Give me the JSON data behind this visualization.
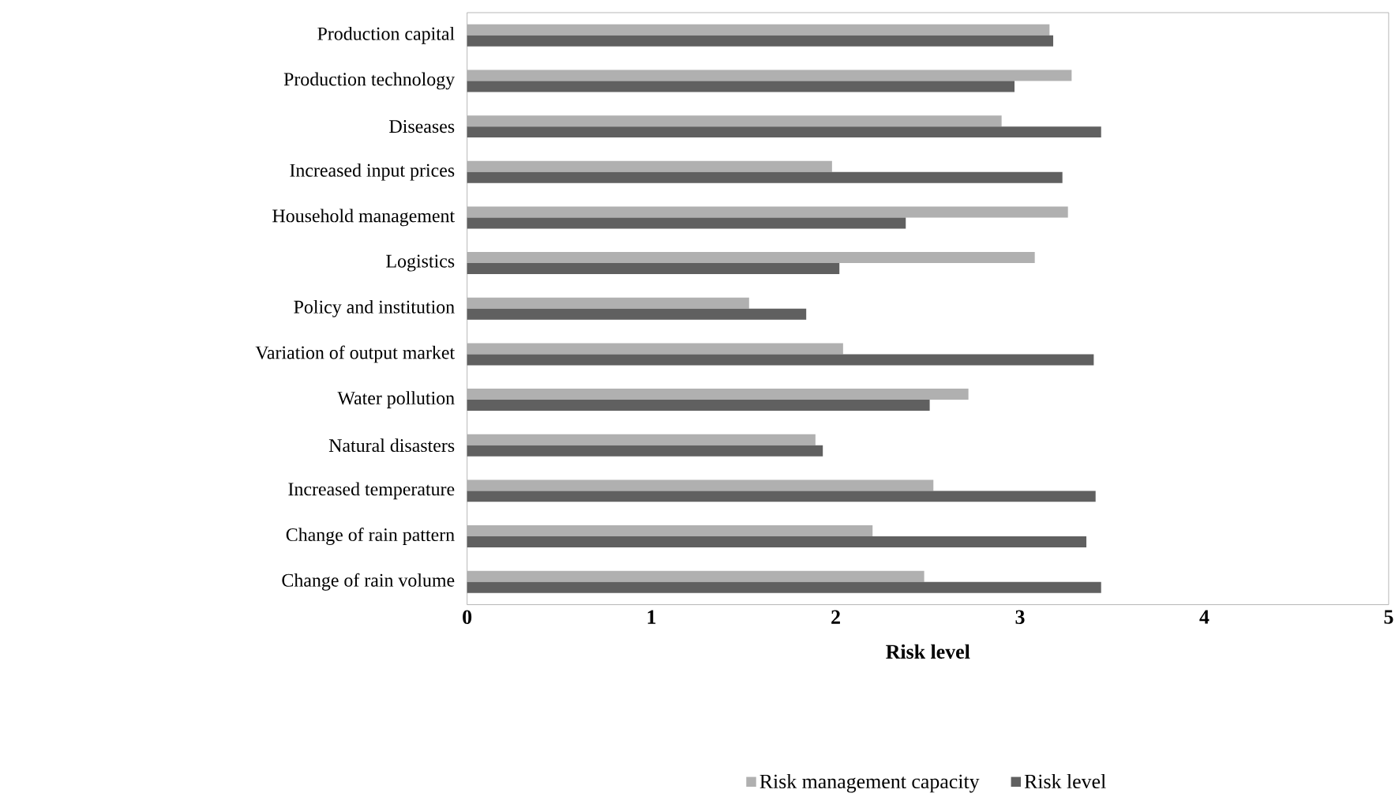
{
  "chart_data": {
    "type": "bar",
    "orientation": "horizontal",
    "xlabel": "Risk level",
    "categories": [
      "Production capital",
      "Production technology",
      "Diseases",
      "Increased input prices",
      "Household management",
      "Logistics",
      "Policy and institution",
      "Variation of output market",
      "Water pollution",
      "Natural disasters",
      "Increased temperature",
      "Change of rain pattern",
      "Change of rain volume"
    ],
    "series": [
      {
        "name": "Risk management capacity",
        "color": "#b0b0b0",
        "values": [
          3.16,
          3.28,
          2.9,
          1.98,
          3.26,
          3.08,
          1.53,
          2.04,
          2.72,
          1.89,
          2.53,
          2.2,
          2.48
        ]
      },
      {
        "name": "Risk level",
        "color": "#606060",
        "values": [
          3.18,
          2.97,
          3.44,
          3.23,
          2.38,
          2.02,
          1.84,
          3.4,
          2.51,
          1.93,
          3.41,
          3.36,
          3.44
        ]
      }
    ],
    "xlim": [
      0,
      5
    ],
    "xticks": [
      0,
      1,
      2,
      3,
      4,
      5
    ],
    "legend": "bottom"
  }
}
